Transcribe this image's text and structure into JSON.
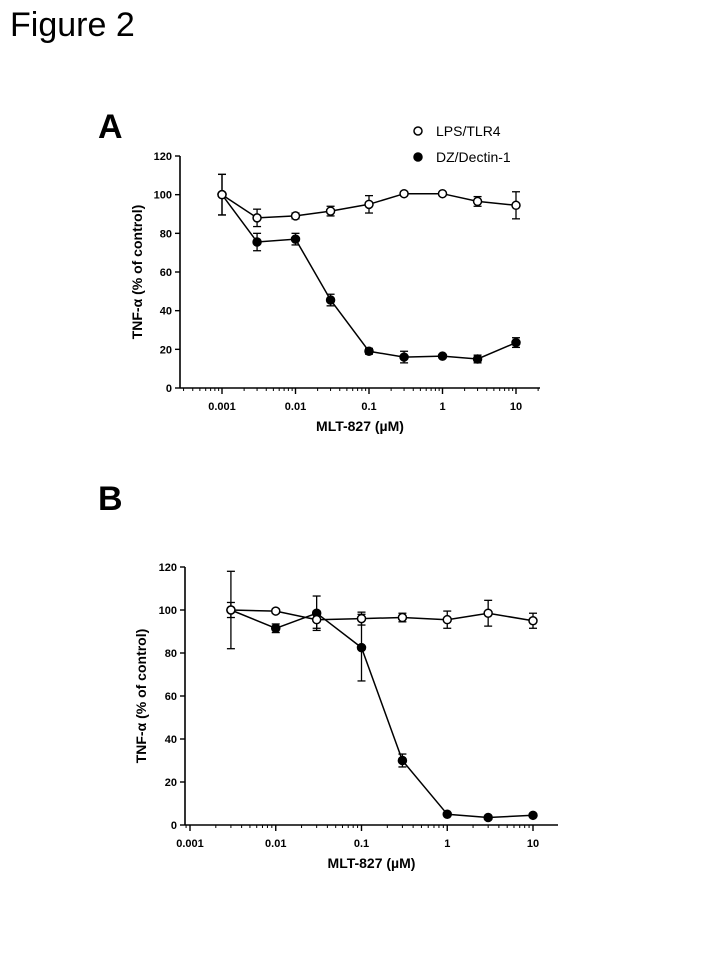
{
  "figure_title": "Figure 2",
  "chart_data": [
    {
      "panel": "A",
      "type": "line",
      "xscale": "log",
      "xlabel": "MLT-827 (µM)",
      "ylabel": "TNF-α (% of control)",
      "ylim": [
        0,
        120
      ],
      "yticks": [
        0,
        20,
        40,
        60,
        80,
        100,
        120
      ],
      "xticks": [
        0.001,
        0.01,
        0.1,
        1,
        10
      ],
      "xtick_labels": [
        "0.001",
        "0.01",
        "0.1",
        "1",
        "10"
      ],
      "legend_position": "top-right",
      "series": [
        {
          "name": "LPS/TLR4",
          "marker": "open-circle",
          "x": [
            0.001,
            0.003,
            0.01,
            0.03,
            0.1,
            0.3,
            1,
            3,
            10
          ],
          "y": [
            100,
            88,
            89,
            91.5,
            95,
            100.5,
            100.5,
            96.5,
            94.5
          ],
          "err": [
            10.5,
            4.5,
            1.5,
            2.5,
            4.5,
            1,
            1,
            2.5,
            7
          ]
        },
        {
          "name": "DZ/Dectin-1",
          "marker": "filled-circle",
          "x": [
            0.001,
            0.003,
            0.01,
            0.03,
            0.1,
            0.3,
            1,
            3,
            10
          ],
          "y": [
            100,
            75.5,
            77,
            45.5,
            19,
            16,
            16.5,
            15,
            23.5
          ],
          "err": [
            10.5,
            4.5,
            3,
            3,
            1.5,
            3,
            1,
            2,
            2.5
          ]
        }
      ]
    },
    {
      "panel": "B",
      "type": "line",
      "xscale": "log",
      "xlabel": "MLT-827 (µM)",
      "ylabel": "TNF-α (% of control)",
      "ylim": [
        0,
        120
      ],
      "yticks": [
        0,
        20,
        40,
        60,
        80,
        100,
        120
      ],
      "xticks": [
        0.001,
        0.01,
        0.1,
        1,
        10
      ],
      "xtick_labels": [
        "0.001",
        "0.01",
        "0.1",
        "1",
        "10"
      ],
      "legend_position": "none",
      "series": [
        {
          "name": "LPS/TLR4",
          "marker": "open-circle",
          "x": [
            0.003,
            0.01,
            0.03,
            0.1,
            0.3,
            1,
            3,
            10
          ],
          "y": [
            100,
            99.5,
            95.5,
            96,
            96.5,
            95.5,
            98.5,
            95
          ],
          "err": [
            3.5,
            1,
            4,
            3,
            2,
            4,
            6,
            3.5
          ]
        },
        {
          "name": "DZ/Dectin-1",
          "marker": "filled-circle",
          "x": [
            0.003,
            0.01,
            0.03,
            0.1,
            0.3,
            1,
            3,
            10
          ],
          "y": [
            100,
            91.5,
            98.5,
            82.5,
            30,
            5,
            3.5,
            4.5
          ],
          "err": [
            18,
            2,
            8,
            15.5,
            3,
            0.5,
            0.5,
            0.5
          ]
        }
      ]
    }
  ]
}
